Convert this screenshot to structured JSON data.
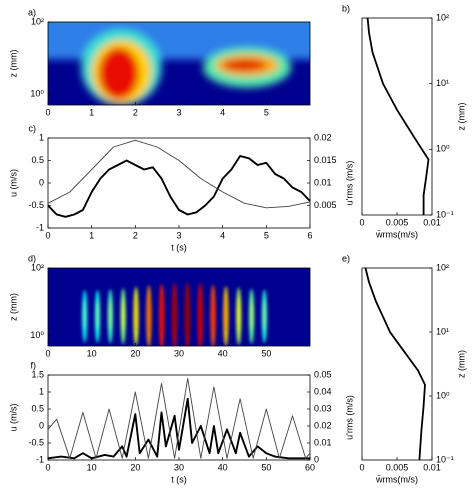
{
  "chart_data": [
    {
      "type": "heatmap",
      "label": "a)",
      "xlim": [
        0,
        6
      ],
      "xticks": [
        0,
        1,
        2,
        3,
        4,
        5
      ],
      "ylim": [
        0.5,
        100
      ],
      "log_y": true,
      "yticks": [
        {
          "value": 1,
          "label": "10⁰"
        },
        {
          "value": 100,
          "label": "10²"
        }
      ],
      "y_label": "z (mm)"
    },
    {
      "type": "profile",
      "label": "b)",
      "xlim": [
        0,
        0.01
      ],
      "xticks": [
        0,
        0.005,
        0.01
      ],
      "ylim": [
        0.1,
        100
      ],
      "log_y": true,
      "yticks": [
        {
          "value": 0.1,
          "label": "10⁻¹"
        },
        {
          "value": 1,
          "label": "10⁰"
        },
        {
          "value": 10,
          "label": "10¹"
        },
        {
          "value": 100,
          "label": "10²"
        }
      ],
      "y_label": "z (mm)",
      "x_label": "w̄rms(m/s)",
      "series": [
        {
          "color": "#000000",
          "values": [
            0.0008,
            0.001,
            0.0015,
            0.003,
            0.005,
            0.0075,
            0.0095,
            0.0092,
            0.0088,
            0.0088
          ],
          "z": [
            100,
            60,
            30,
            10,
            4,
            1.5,
            0.7,
            0.4,
            0.2,
            0.1
          ]
        }
      ]
    },
    {
      "type": "dual-line",
      "label": "c)",
      "xlim": [
        0,
        6
      ],
      "xticks": [
        0,
        1,
        2,
        3,
        4,
        5,
        6
      ],
      "ylim": [
        -1,
        1
      ],
      "yticks": [
        -1,
        -0.5,
        0,
        0.5,
        1
      ],
      "y2lim": [
        0,
        0.02
      ],
      "y2ticks": [
        0.005,
        0.01,
        0.015,
        0.02
      ],
      "x_label": "t (s)",
      "y_label": "u (m/s)",
      "y2_label": "u'rms (m/s)",
      "series": [
        {
          "color": "#000000",
          "x": [
            0,
            0.2,
            0.4,
            0.6,
            0.8,
            1,
            1.2,
            1.4,
            1.6,
            1.8,
            2,
            2.2,
            2.4,
            2.6,
            2.8,
            3,
            3.2,
            3.4,
            3.6,
            3.8,
            4,
            4.2,
            4.4,
            4.6,
            4.8,
            5,
            5.2,
            5.4,
            5.6,
            5.8,
            6
          ],
          "values": [
            -0.5,
            -0.7,
            -0.75,
            -0.7,
            -0.6,
            -0.2,
            0.1,
            0.3,
            0.4,
            0.5,
            0.4,
            0.3,
            0.35,
            0.1,
            -0.3,
            -0.6,
            -0.7,
            -0.65,
            -0.5,
            -0.3,
            0.1,
            0.3,
            0.6,
            0.55,
            0.4,
            0.45,
            0.2,
            0.1,
            -0.1,
            -0.2,
            -0.4
          ]
        },
        {
          "color": "#444444",
          "axis": "y2",
          "x": [
            0,
            0.5,
            1,
            1.5,
            2,
            2.5,
            3,
            3.5,
            4,
            4.5,
            5,
            5.5,
            6
          ],
          "values": [
            0.0055,
            0.008,
            0.013,
            0.018,
            0.0195,
            0.018,
            0.015,
            0.011,
            0.008,
            0.0055,
            0.0045,
            0.0048,
            0.0058
          ]
        }
      ]
    },
    {
      "type": "heatmap",
      "label": "d)",
      "xlim": [
        0,
        60
      ],
      "xticks": [
        0,
        10,
        20,
        30,
        40,
        50
      ],
      "ylim": [
        0.5,
        100
      ],
      "log_y": true,
      "yticks": [
        {
          "value": 1,
          "label": "10⁰"
        },
        {
          "value": 100,
          "label": "10²"
        }
      ],
      "y_label": "z (mm)"
    },
    {
      "type": "profile",
      "label": "e)",
      "xlim": [
        0,
        0.01
      ],
      "xticks": [
        0,
        0.005,
        0.01
      ],
      "ylim": [
        0.1,
        100
      ],
      "log_y": true,
      "yticks": [
        {
          "value": 0.1,
          "label": "10⁻¹"
        },
        {
          "value": 1,
          "label": "10⁰"
        },
        {
          "value": 10,
          "label": "10¹"
        },
        {
          "value": 100,
          "label": "10²"
        }
      ],
      "y_label": "z (mm)",
      "x_label": "w̄rms(m/s)",
      "series": [
        {
          "color": "#000000",
          "values": [
            0.0005,
            0.001,
            0.002,
            0.004,
            0.006,
            0.008,
            0.009,
            0.0088,
            0.0085,
            0.0082
          ],
          "z": [
            100,
            60,
            30,
            10,
            5,
            2.5,
            1.5,
            0.7,
            0.3,
            0.1
          ]
        }
      ]
    },
    {
      "type": "dual-line",
      "label": "f)",
      "xlim": [
        0,
        60
      ],
      "xticks": [
        0,
        10,
        20,
        30,
        40,
        50,
        60
      ],
      "ylim": [
        -1,
        1.5
      ],
      "yticks": [
        -1,
        -0.5,
        0,
        0.5,
        1,
        1.5
      ],
      "y2lim": [
        0,
        0.05
      ],
      "y2ticks": [
        0,
        0.01,
        0.02,
        0.03,
        0.04,
        0.05
      ],
      "x_label": "t (s)",
      "y_label": "u (m/s)",
      "y2_label": "u'rms (m/s)",
      "series": [
        {
          "color": "#000000",
          "x": [
            0,
            3,
            6,
            8,
            10,
            13,
            15,
            17,
            18,
            20,
            21,
            23,
            25,
            26,
            27,
            29,
            30,
            32,
            33,
            35,
            37,
            38,
            39,
            41,
            43,
            44,
            46,
            48,
            50,
            52,
            55,
            58,
            60
          ],
          "values": [
            -0.95,
            -0.9,
            -0.95,
            -0.8,
            -0.95,
            -0.85,
            -0.9,
            -0.6,
            -0.9,
            0.35,
            -0.8,
            -0.4,
            -0.9,
            0.4,
            -0.6,
            0.3,
            -0.7,
            0.8,
            -0.5,
            0,
            -0.8,
            0,
            -0.8,
            -0.1,
            -0.8,
            -0.2,
            -0.9,
            -0.6,
            -0.8,
            -0.9,
            -0.95,
            -0.95,
            -0.95
          ]
        },
        {
          "color": "#444444",
          "axis": "y2",
          "x": [
            0,
            2,
            5,
            8,
            11,
            14,
            17,
            20,
            23,
            26,
            29,
            32,
            35,
            38,
            41,
            44,
            47,
            50,
            53,
            56,
            59,
            60
          ],
          "values": [
            0.018,
            0.024,
            0.001,
            0.028,
            0.001,
            0.03,
            0.001,
            0.04,
            0.001,
            0.045,
            0.001,
            0.048,
            0.001,
            0.043,
            0.001,
            0.036,
            0.001,
            0.03,
            0.001,
            0.026,
            0.001,
            0.004
          ]
        }
      ]
    }
  ]
}
